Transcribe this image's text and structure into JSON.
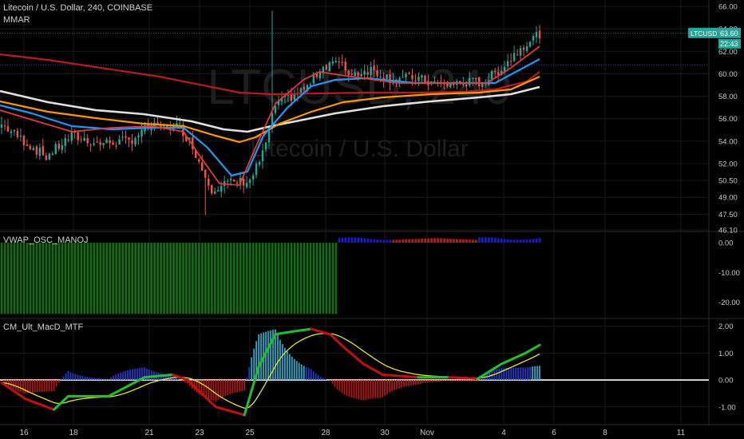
{
  "header": {
    "symbol_line": "Litecoin / U.S. Dollar, 240, COINBASE",
    "indicator": "MMAR"
  },
  "watermark": {
    "symbol": "LTCUSD, 240",
    "name": "Litecoin / U.S. Dollar"
  },
  "price_badge": {
    "ticker": "LTCUSD",
    "price": "63.60",
    "countdown": "22:43"
  },
  "colors": {
    "background": "#000000",
    "grid": "#1a1a1a",
    "up_candle": "#26a69a",
    "down_candle": "#ef5350",
    "ema_fast": "#e53935",
    "ema_mid": "#2196f3",
    "ema_slow_red": "#b71c1c",
    "ema_orange": "#ff9800",
    "ema_white": "#e0e0e0",
    "osc_green": "#1b7a1b",
    "osc_blue": "#1a1ad0",
    "osc_red": "#c01818",
    "macd_green": "#1fbf2f",
    "macd_red": "#c01010",
    "signal_yellow": "#e6e62e",
    "hist_teal": "#26a6c8",
    "hist_blue": "#2438c8",
    "hist_red": "#b01818",
    "badge": "#26a69a"
  },
  "chart_data": [
    {
      "type": "candlestick",
      "title": "Litecoin / U.S. Dollar, 240, COINBASE",
      "x_ticks": [
        "16",
        "18",
        "21",
        "23",
        "25",
        "28",
        "30",
        "Nov",
        "4",
        "6",
        "8",
        "11"
      ],
      "y_ticks": [
        "66.00",
        "64.00",
        "62.00",
        "60.00",
        "58.00",
        "56.00",
        "54.00",
        "52.00",
        "50.50",
        "49.00",
        "47.50",
        "46.10"
      ],
      "ylim": [
        46.1,
        66.0
      ],
      "last_price": 63.6,
      "horizontal_lines": [
        63.6,
        60.8
      ],
      "moving_averages": [
        "red",
        "blue",
        "dark-red",
        "orange",
        "white"
      ]
    },
    {
      "type": "bar",
      "title": "VWAP_OSC_MANOJ",
      "y_ticks": [
        "0.00",
        "-10.00",
        "-20.00"
      ],
      "ylim": [
        -25,
        3
      ]
    },
    {
      "type": "line",
      "title": "CM_Ult_MacD_MTF",
      "y_ticks": [
        "2.00",
        "1.00",
        "0.00",
        "-1.00"
      ],
      "ylim": [
        -1.6,
        2.2
      ],
      "series": [
        {
          "name": "MACD"
        },
        {
          "name": "Signal"
        }
      ]
    }
  ]
}
